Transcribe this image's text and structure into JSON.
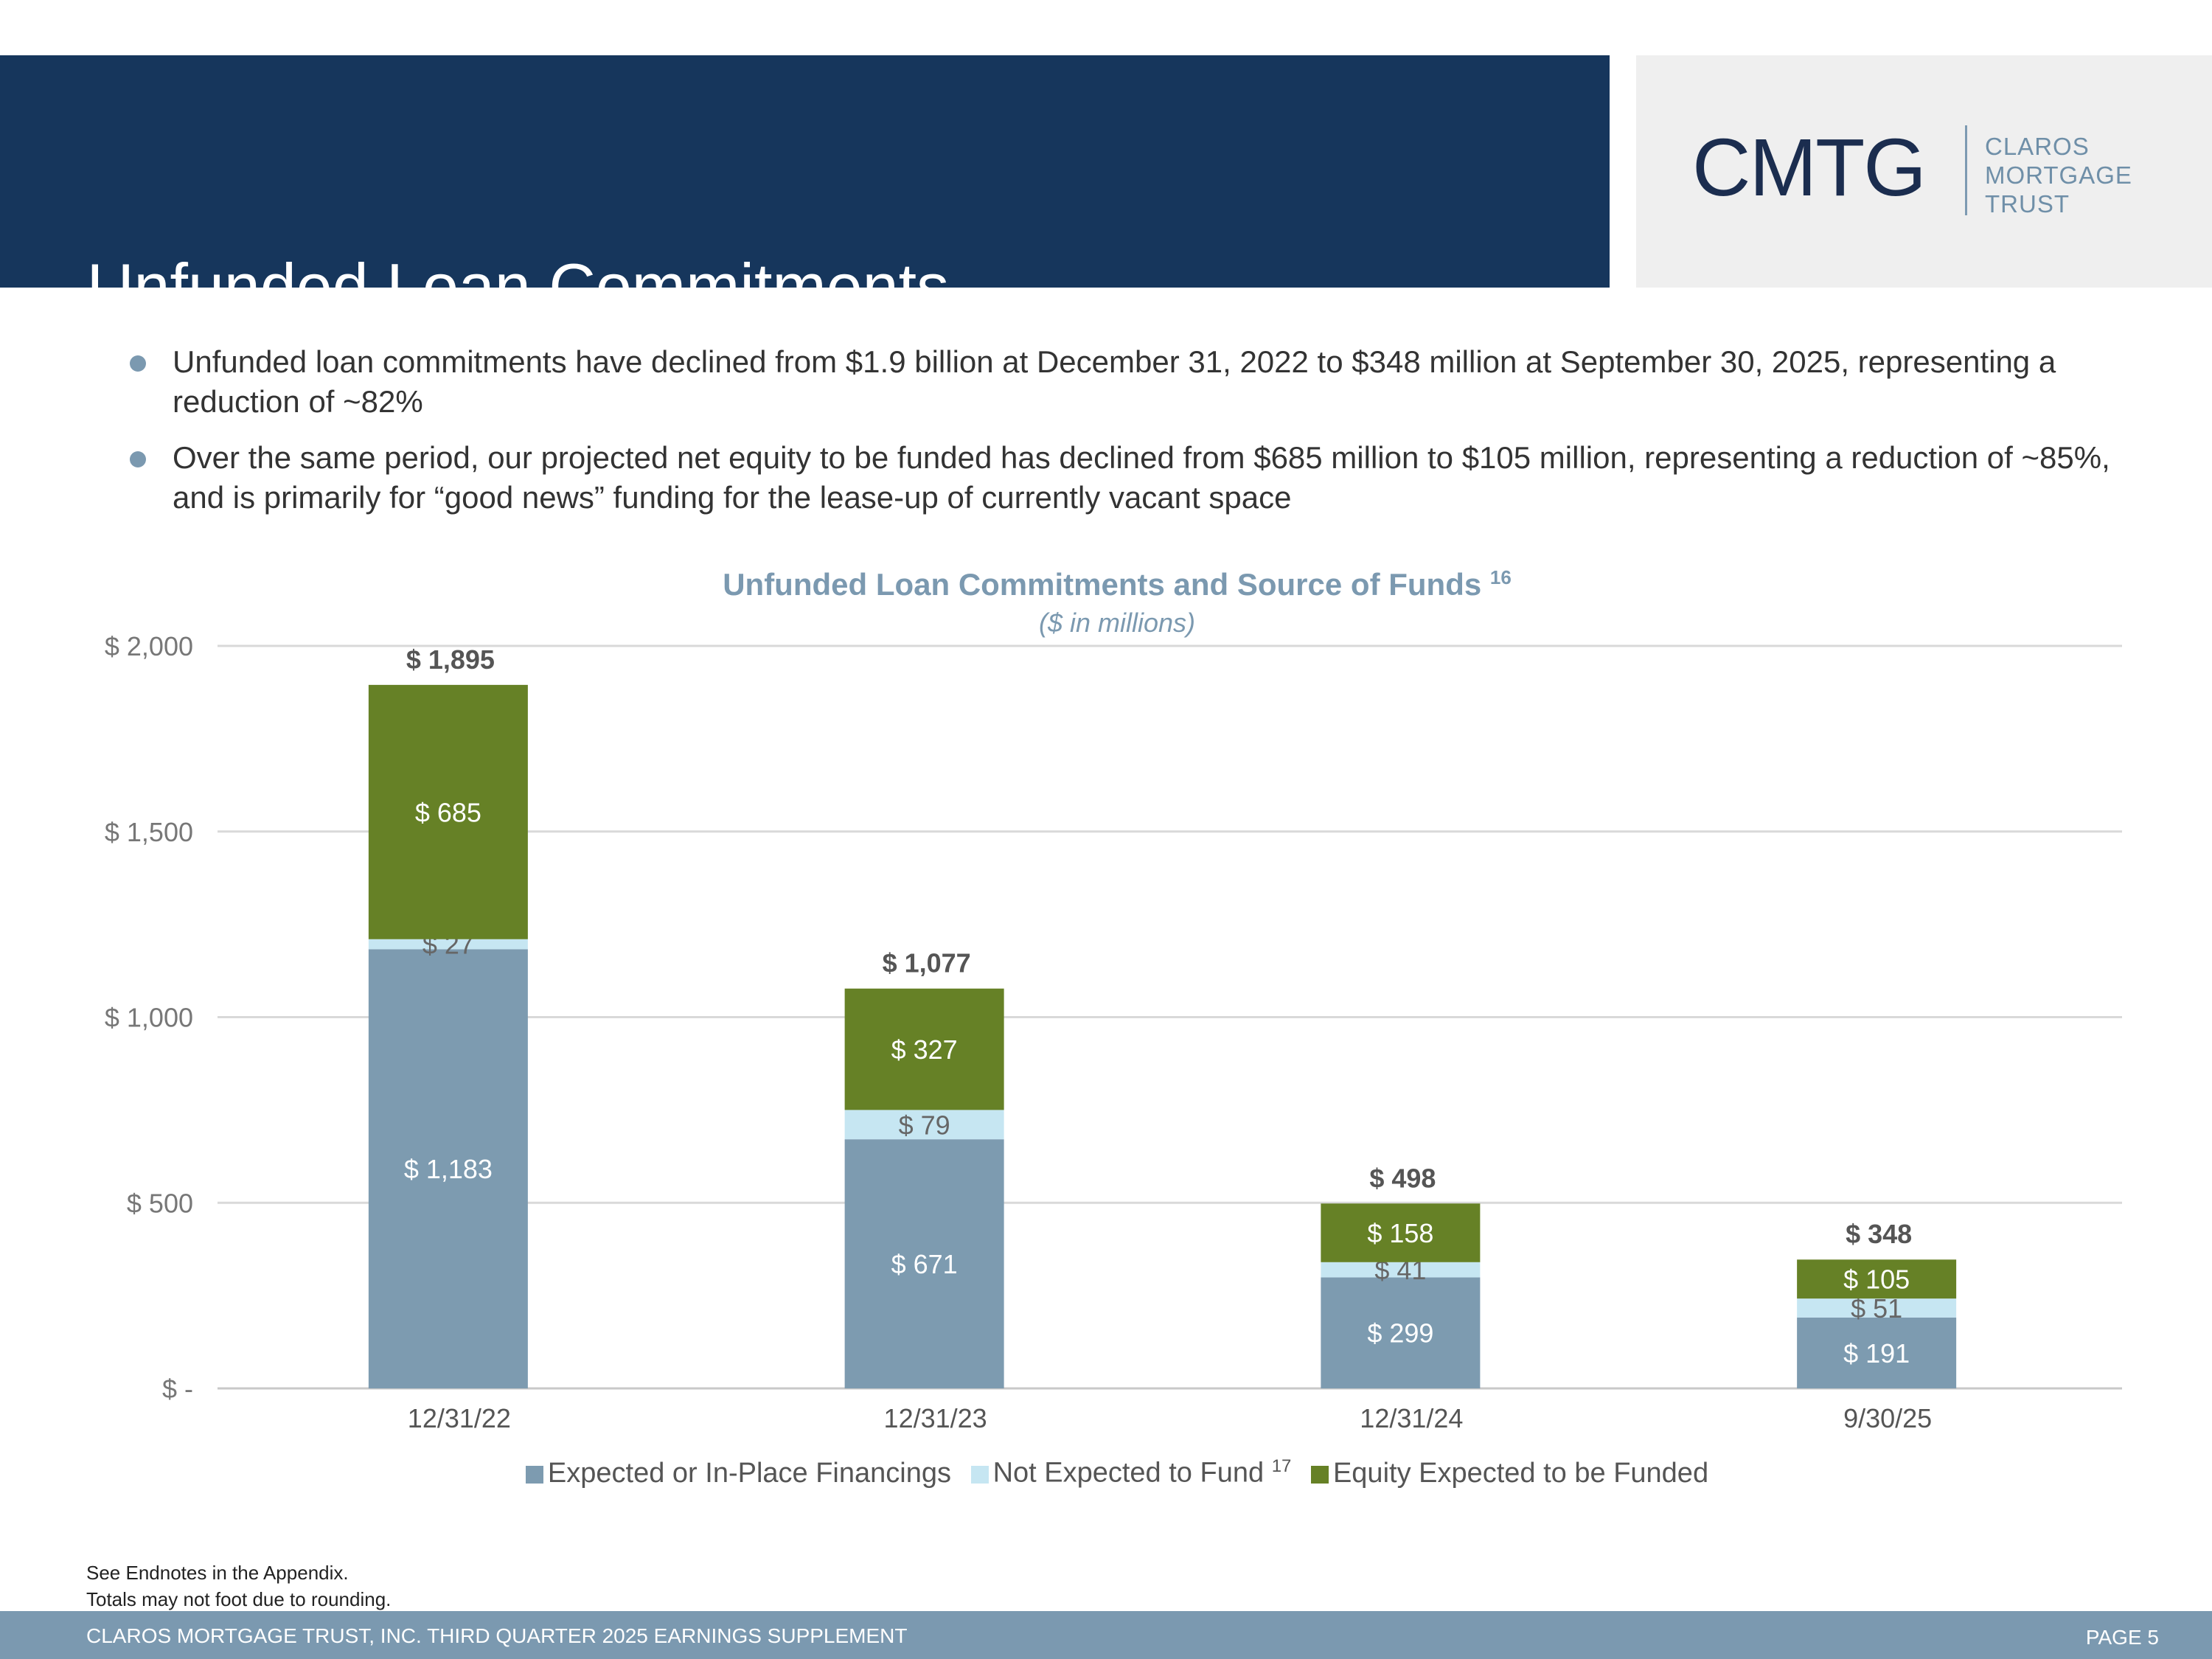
{
  "page": {
    "title": "Unfunded Loan Commitments"
  },
  "logo": {
    "mark": "CMTG",
    "line1": "CLAROS",
    "line2": "MORTGAGE",
    "line3": "TRUST"
  },
  "bullets": [
    "Unfunded loan commitments have declined from $1.9 billion at December 31, 2022 to $348 million at September 30, 2025, representing a reduction of ~82%",
    "Over the same period, our projected net equity to be funded has declined from $685 million to $105 million, representing a reduction of ~85%, and is primarily for “good news” funding for the lease-up of currently vacant space"
  ],
  "chart_data": {
    "type": "bar",
    "stacked": true,
    "title": "Unfunded Loan Commitments and Source of Funds",
    "title_superscript": "16",
    "subtitle": "($ in millions)",
    "categories": [
      "12/31/22",
      "12/31/23",
      "12/31/24",
      "9/30/25"
    ],
    "series": [
      {
        "name": "Expected or In-Place Financings",
        "values": [
          1183,
          671,
          299,
          191
        ],
        "labels": [
          "$ 1,183",
          "$ 671",
          "$ 299",
          "$ 191"
        ],
        "color": "#7d9bb0",
        "label_color": "#ffffff"
      },
      {
        "name": "Not Expected to Fund",
        "name_superscript": "17",
        "values": [
          27,
          79,
          41,
          51
        ],
        "labels": [
          "$ 27",
          "$ 79",
          "$ 41",
          "$ 51"
        ],
        "color": "#c6e6f2",
        "label_color": "#666666"
      },
      {
        "name": "Equity Expected to be Funded",
        "values": [
          685,
          327,
          158,
          105
        ],
        "labels": [
          "$ 685",
          "$ 327",
          "$ 158",
          "$ 105"
        ],
        "color": "#668126",
        "label_color": "#ffffff"
      }
    ],
    "totals": [
      1895,
      1077,
      498,
      348
    ],
    "total_labels": [
      "$ 1,895",
      "$ 1,077",
      "$ 498",
      "$ 348"
    ],
    "ylim": [
      0,
      2000
    ],
    "yticks": [
      0,
      500,
      1000,
      1500,
      2000
    ],
    "ytick_labels": [
      "$ -",
      "$ 500",
      "$ 1,000",
      "$ 1,500",
      "$ 2,000"
    ],
    "grid": true,
    "legend_position": "bottom"
  },
  "footnotes": {
    "line1": "See Endnotes in the Appendix.",
    "line2": "Totals may not foot due to rounding."
  },
  "footer": {
    "left": "CLAROS MORTGAGE TRUST, INC. THIRD QUARTER 2025 EARNINGS SUPPLEMENT",
    "right": "PAGE 5"
  }
}
